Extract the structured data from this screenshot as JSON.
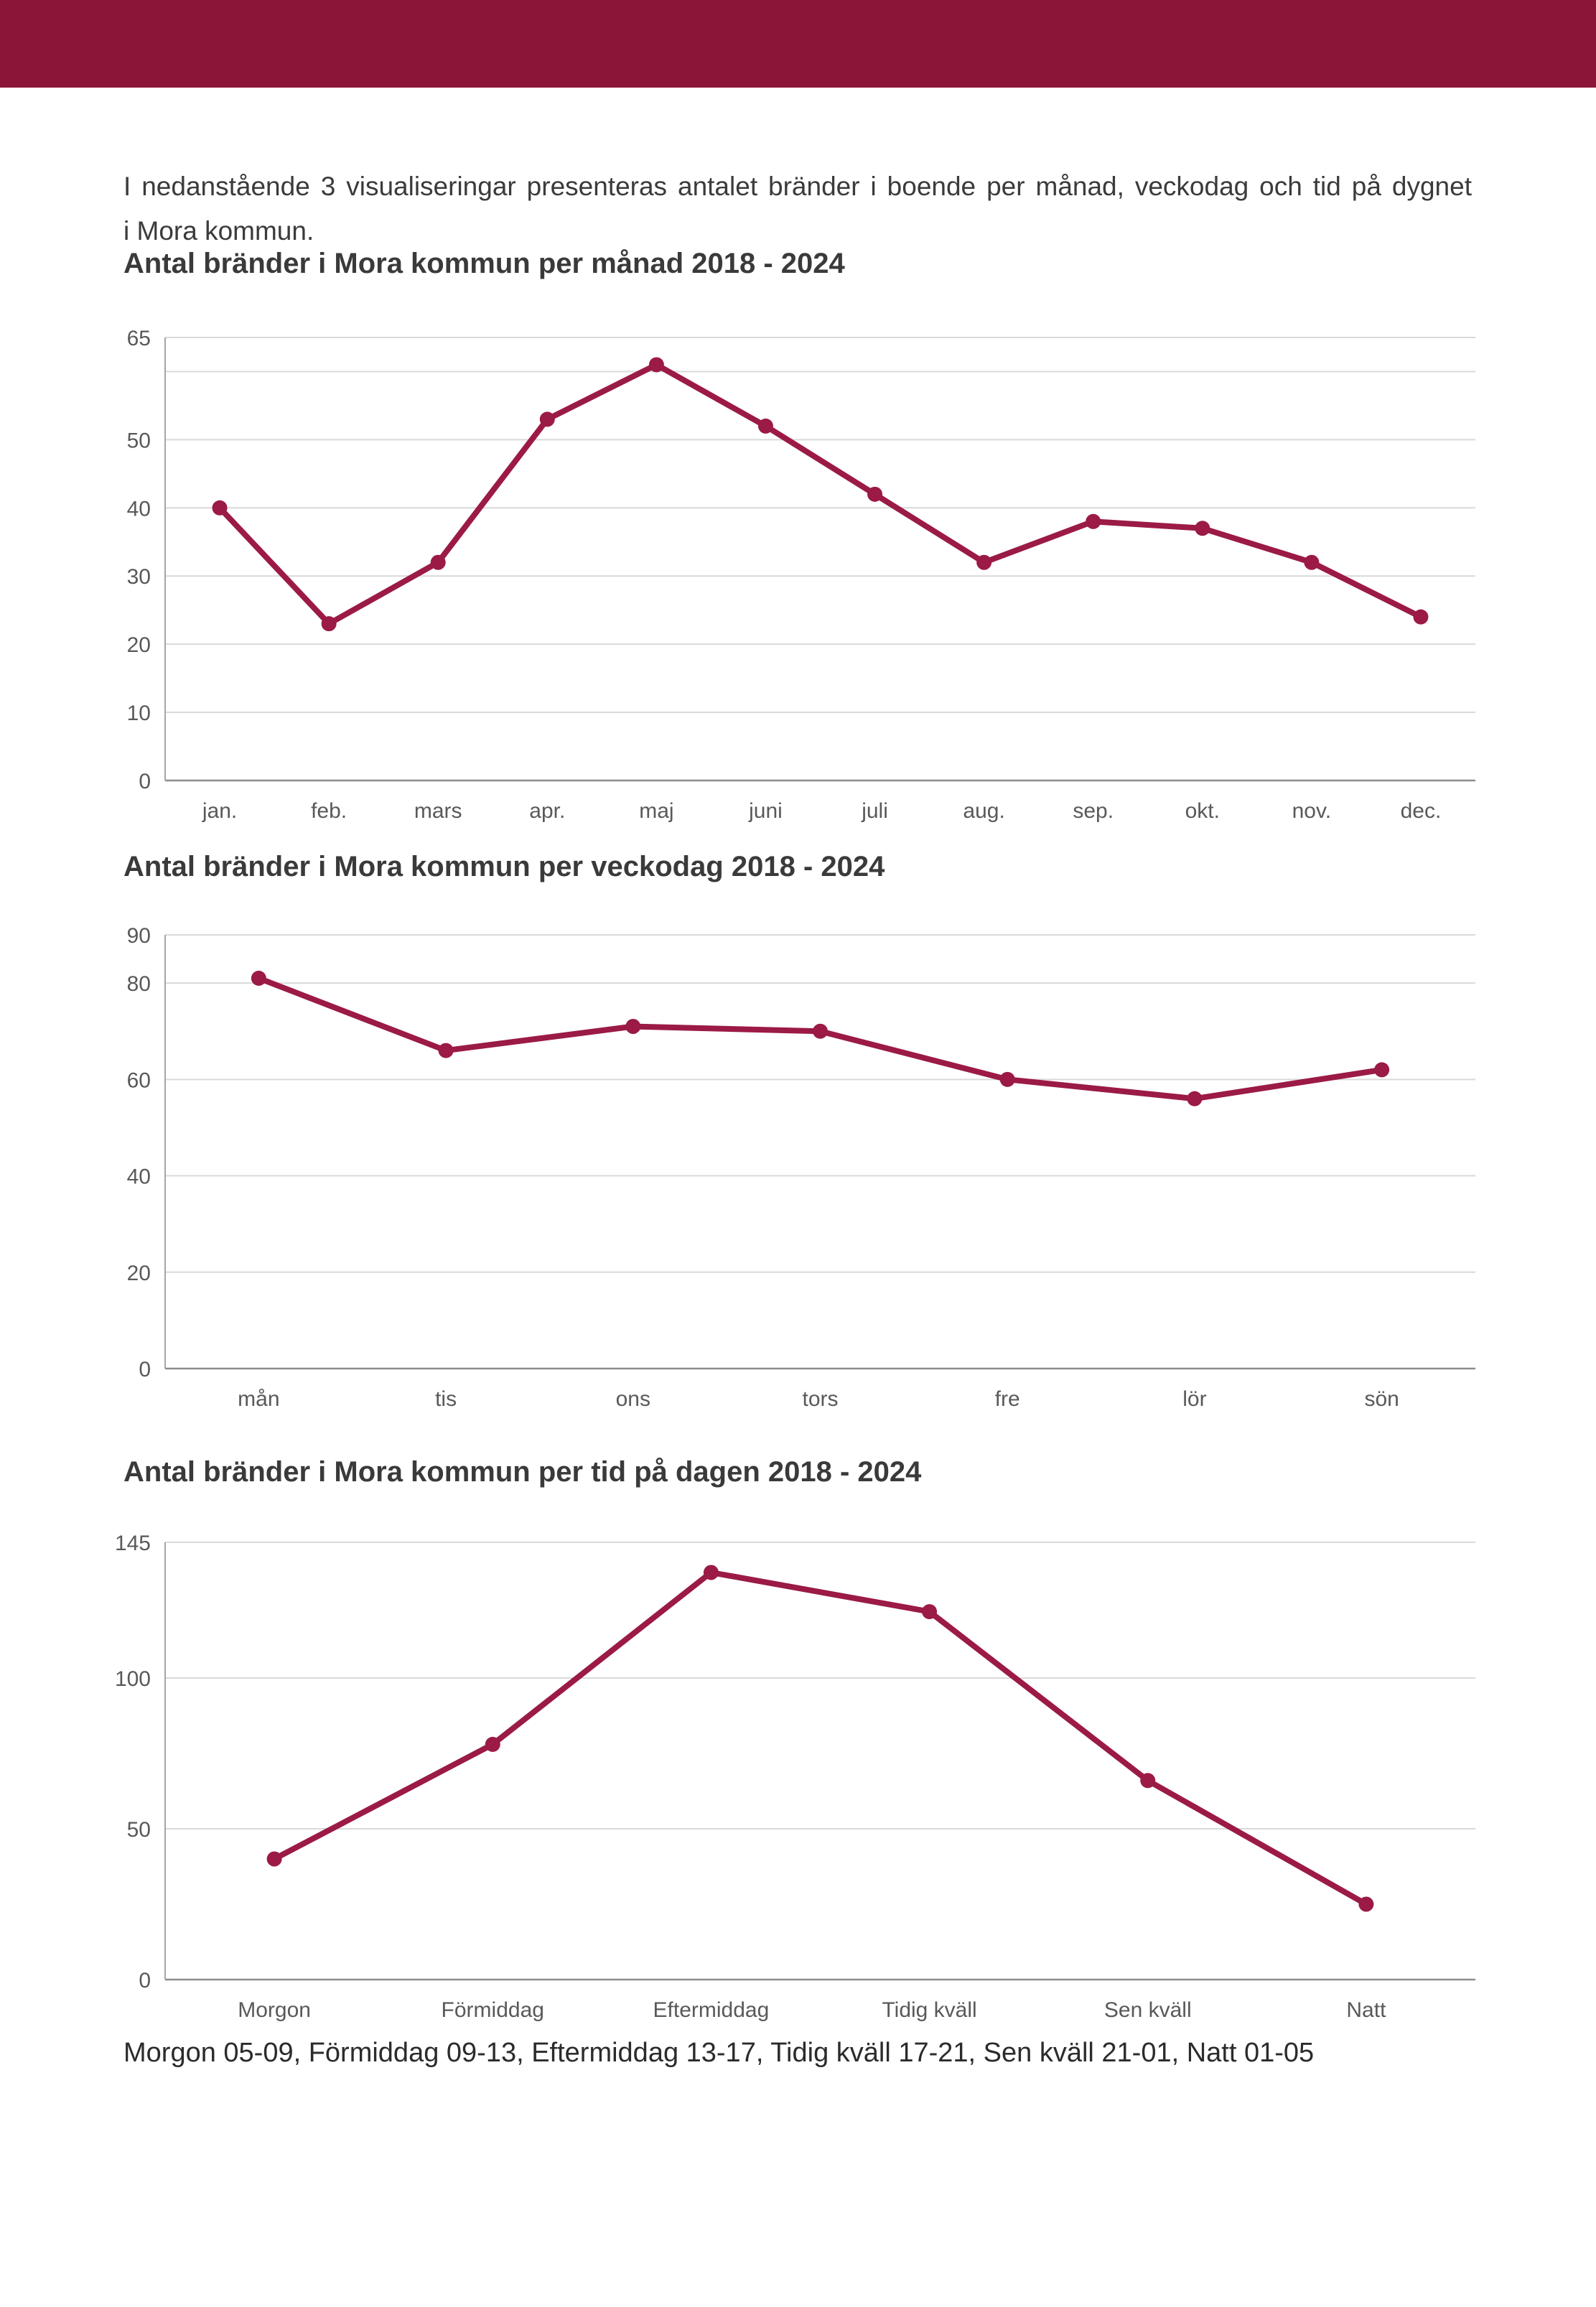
{
  "page": {
    "background_color": "#ffffff",
    "accent_color": "#8A1538",
    "line_color": "#9B1A46",
    "gridline_color": "#d9d9d9",
    "axis_color": "#a6a6a6",
    "zero_line_color": "#8c8c8c",
    "label_color": "#595959"
  },
  "intro": {
    "line1": "I nedanstående 3 visualiseringar presenteras antalet bränder i boende per månad, veckodag och tid på dygnet",
    "line2": "i Mora kommun."
  },
  "charts": [
    {
      "title": "Antal bränder i Mora kommun per månad 2018 - 2024",
      "chart_data": {
        "type": "line",
        "title": "Antal bränder i Mora kommun per månad 2018 - 2024",
        "categories": [
          "jan.",
          "feb.",
          "mars",
          "apr.",
          "maj",
          "juni",
          "juli",
          "aug.",
          "sep.",
          "okt.",
          "nov.",
          "dec."
        ],
        "values": [
          40,
          23,
          32,
          53,
          61,
          52,
          42,
          32,
          38,
          37,
          32,
          24
        ],
        "xlabel": "",
        "ylabel": "",
        "ylim": [
          0,
          65
        ],
        "yticks": [
          0,
          10,
          20,
          30,
          40,
          50,
          65
        ],
        "gridlines": [
          0,
          10,
          20,
          30,
          40,
          50,
          60,
          65
        ],
        "grid": "horizontal",
        "legend": "none"
      }
    },
    {
      "title": "Antal bränder i Mora kommun per veckodag 2018 - 2024",
      "chart_data": {
        "type": "line",
        "title": "Antal bränder i Mora kommun per veckodag 2018 - 2024",
        "categories": [
          "mån",
          "tis",
          "ons",
          "tors",
          "fre",
          "lör",
          "sön"
        ],
        "values": [
          81,
          66,
          71,
          70,
          60,
          56,
          62
        ],
        "xlabel": "",
        "ylabel": "",
        "ylim": [
          0,
          90
        ],
        "yticks": [
          0,
          20,
          40,
          60,
          80,
          90
        ],
        "gridlines": [
          0,
          20,
          40,
          60,
          80,
          90
        ],
        "grid": "horizontal",
        "legend": "none"
      }
    },
    {
      "title": "Antal bränder i Mora kommun per tid på dagen 2018 - 2024",
      "chart_data": {
        "type": "line",
        "title": "Antal bränder i Mora kommun per tid på dagen 2018 - 2024",
        "categories": [
          "Morgon",
          "Förmiddag",
          "Eftermiddag",
          "Tidig kväll",
          "Sen kväll",
          "Natt"
        ],
        "values": [
          40,
          78,
          135,
          122,
          66,
          25
        ],
        "xlabel": "",
        "ylabel": "",
        "ylim": [
          0,
          145
        ],
        "yticks": [
          0,
          50,
          100,
          145
        ],
        "gridlines": [
          0,
          50,
          100,
          145
        ],
        "grid": "horizontal",
        "legend": "none"
      }
    }
  ],
  "footer": {
    "text": "Morgon 05-09, Förmiddag 09-13, Eftermiddag 13-17, Tidig kväll 17-21, Sen kväll 21-01, Natt 01-05"
  }
}
